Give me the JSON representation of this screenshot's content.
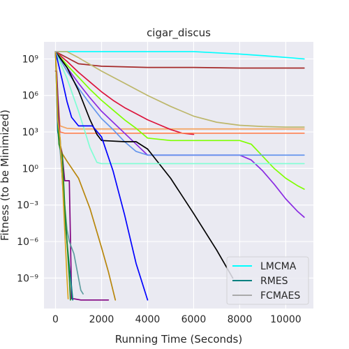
{
  "chart_data": {
    "type": "line",
    "title": "cigar_discus",
    "xlabel": "Running Time (Seconds)",
    "ylabel": "Fitness (to be Minimized)",
    "xscale": "linear",
    "yscale": "log",
    "xlim": [
      -500,
      11200
    ],
    "ylim_log10": [
      -11.5,
      10.4
    ],
    "xticks": [
      0,
      2000,
      4000,
      6000,
      8000,
      10000
    ],
    "yticks": [
      {
        "exp": 9,
        "label": "10⁹"
      },
      {
        "exp": 6,
        "label": "10⁶"
      },
      {
        "exp": 3,
        "label": "10³"
      },
      {
        "exp": 0,
        "label": "10⁰"
      },
      {
        "exp": -3,
        "label": "10⁻³"
      },
      {
        "exp": -6,
        "label": "10⁻⁶"
      },
      {
        "exp": -9,
        "label": "10⁻⁹"
      }
    ],
    "grid": true,
    "legend_position": "bottom-right",
    "legend": [
      {
        "name": "LMCMA",
        "color": "#00ffff"
      },
      {
        "name": "RMES",
        "color": "#008080"
      },
      {
        "name": "FCMAES",
        "color": "#aaaaaa"
      }
    ],
    "series": [
      {
        "name": "LMCMA",
        "color": "#00ffff",
        "x": [
          0,
          6000,
          8000,
          9500,
          10800
        ],
        "log10_y": [
          9.6,
          9.6,
          9.4,
          9.2,
          9.0
        ]
      },
      {
        "color": "#a52a2a",
        "x": [
          0,
          500,
          1000,
          2000,
          4000,
          6000,
          8000,
          10800
        ],
        "log10_y": [
          9.6,
          9.1,
          8.6,
          8.4,
          8.3,
          8.3,
          8.25,
          8.25
        ]
      },
      {
        "color": "#bdb76b",
        "x": [
          0,
          500,
          1000,
          2000,
          3000,
          4000,
          5000,
          6000,
          7000,
          8000,
          9000,
          10000,
          10800
        ],
        "log10_y": [
          9.6,
          9.6,
          9.1,
          8.0,
          7.0,
          6.0,
          5.1,
          4.3,
          3.8,
          3.55,
          3.45,
          3.4,
          3.4
        ]
      },
      {
        "color": "#f4a460",
        "x": [
          0,
          100,
          200,
          500,
          1000,
          3000,
          6000,
          10800
        ],
        "log10_y": [
          9.6,
          6.0,
          3.5,
          3.3,
          3.25,
          3.25,
          3.25,
          3.25
        ]
      },
      {
        "color": "#dc143c",
        "x": [
          0,
          500,
          1000,
          1500,
          2000,
          2500,
          3000,
          3500,
          4000,
          4500,
          5000,
          5500,
          6000
        ],
        "log10_y": [
          9.6,
          8.8,
          7.9,
          7.1,
          6.3,
          5.6,
          5.0,
          4.5,
          4.0,
          3.6,
          3.2,
          2.9,
          2.8
        ]
      },
      {
        "color": "#ff7f50",
        "x": [
          0,
          100,
          200,
          400,
          1000,
          3000,
          6000,
          10800
        ],
        "log10_y": [
          9.6,
          5.0,
          3.0,
          2.9,
          2.9,
          2.9,
          2.9,
          2.9
        ]
      },
      {
        "color": "#7fff00",
        "x": [
          0,
          500,
          1000,
          1500,
          2000,
          2500,
          3000,
          3500,
          4000,
          5000,
          7000,
          8000,
          8500,
          9000,
          9500,
          10000,
          10500,
          10800
        ],
        "log10_y": [
          9.6,
          8.5,
          7.5,
          6.5,
          5.6,
          4.8,
          4.0,
          3.3,
          2.5,
          2.3,
          2.3,
          2.3,
          2.0,
          1.0,
          0.0,
          -0.8,
          -1.4,
          -1.7
        ]
      },
      {
        "color": "#8a2be2",
        "x": [
          0,
          500,
          1000,
          1500,
          2000,
          2500,
          3000,
          4000,
          6000,
          8000,
          8500,
          9000,
          9500,
          10000,
          10500,
          10800
        ],
        "log10_y": [
          9.6,
          8.3,
          7.0,
          5.8,
          4.7,
          3.8,
          2.9,
          1.1,
          1.1,
          1.1,
          0.7,
          -0.2,
          -1.3,
          -2.5,
          -3.5,
          -4.0
        ]
      },
      {
        "color": "#6495ed",
        "x": [
          0,
          500,
          1000,
          1500,
          2000,
          2500,
          3000,
          3500,
          4000,
          6000,
          10800
        ],
        "log10_y": [
          9.6,
          8.0,
          6.6,
          5.3,
          4.1,
          3.2,
          2.2,
          1.4,
          1.1,
          1.1,
          1.1
        ]
      },
      {
        "color": "#000000",
        "x": [
          0,
          500,
          1000,
          1500,
          1800,
          2000,
          3000,
          3500,
          4000,
          5000,
          6000,
          7000,
          7700
        ],
        "log10_y": [
          9.6,
          8.3,
          6.4,
          4.0,
          2.8,
          2.3,
          2.2,
          2.2,
          1.6,
          -0.8,
          -3.7,
          -6.7,
          -9.0
        ]
      },
      {
        "color": "#7fffd4",
        "x": [
          0,
          500,
          1000,
          1500,
          1800,
          2000,
          3000,
          6000,
          10800
        ],
        "log10_y": [
          9.6,
          7.4,
          4.7,
          1.7,
          0.5,
          0.4,
          0.4,
          0.4,
          0.4
        ]
      },
      {
        "color": "#0000ff",
        "x": [
          0,
          300,
          500,
          700,
          1000,
          1600,
          2000,
          2500,
          3000,
          3500,
          4000
        ],
        "log10_y": [
          9.6,
          7.2,
          5.5,
          4.2,
          3.5,
          3.5,
          2.6,
          -0.2,
          -3.8,
          -7.8,
          -10.8
        ]
      },
      {
        "color": "#b8860b",
        "x": [
          0,
          100,
          200,
          300,
          500,
          1000,
          1500,
          2000,
          2300,
          2600
        ],
        "log10_y": [
          9.6,
          5.5,
          2.0,
          1.2,
          0.6,
          -0.8,
          -3.3,
          -6.5,
          -8.5,
          -10.8
        ]
      },
      {
        "color": "#800080",
        "x": [
          0,
          50,
          200,
          300,
          400,
          500,
          600,
          700,
          800,
          1100,
          2300
        ],
        "log10_y": [
          8.0,
          8.0,
          2.0,
          1.0,
          -1.0,
          -1.0,
          -1.0,
          -10.7,
          -10.7,
          -10.8,
          -10.8
        ]
      },
      {
        "color": "#5f9ea0",
        "x": [
          0,
          100,
          200,
          400,
          500,
          600,
          700,
          800,
          900,
          1000,
          1100,
          1200
        ],
        "log10_y": [
          9.6,
          3.0,
          1.5,
          -3.0,
          -5.0,
          -6.0,
          -6.5,
          -7.0,
          -8.0,
          -9.0,
          -10.0,
          -10.3
        ]
      },
      {
        "name": "RMES",
        "color": "#008080",
        "x": [
          0,
          100,
          200,
          300,
          400,
          500,
          600,
          700,
          750
        ],
        "log10_y": [
          9.6,
          3.0,
          2.5,
          -1.0,
          -4.0,
          -6.0,
          -8.0,
          -9.8,
          -10.8
        ]
      },
      {
        "color": "#228b22",
        "x": [
          0,
          150,
          300,
          400,
          500,
          600,
          650
        ],
        "log10_y": [
          9.6,
          2.0,
          1.0,
          -3.0,
          -6.0,
          -9.0,
          -10.8
        ]
      },
      {
        "color": "#daa520",
        "x": [
          0,
          100,
          200,
          300,
          400,
          500,
          550
        ],
        "log10_y": [
          9.6,
          4.0,
          2.5,
          -1.0,
          -5.0,
          -9.0,
          -10.7
        ]
      },
      {
        "name": "FCMAES",
        "color": "#aaaaaa",
        "x": [
          0,
          100
        ],
        "log10_y": [
          9.6,
          9.6
        ]
      }
    ]
  }
}
